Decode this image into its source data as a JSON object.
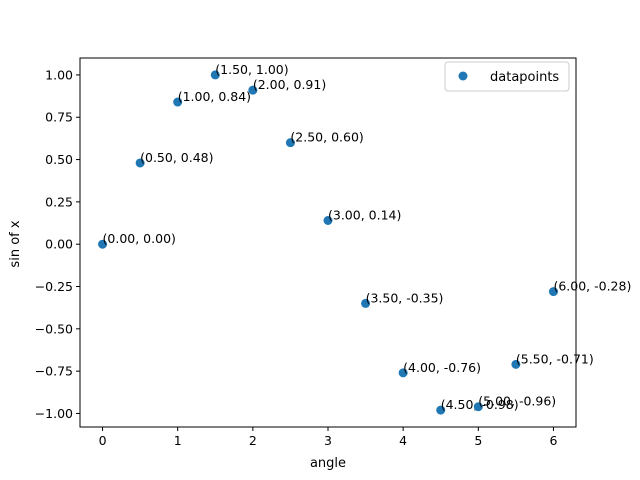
{
  "chart_data": {
    "type": "scatter",
    "title": "",
    "xlabel": "angle",
    "ylabel": "sin of x",
    "xlim": [
      -0.3,
      6.3
    ],
    "ylim": [
      -1.08,
      1.1
    ],
    "xticks": [
      0,
      1,
      2,
      3,
      4,
      5,
      6
    ],
    "xtick_labels": [
      "0",
      "1",
      "2",
      "3",
      "4",
      "5",
      "6"
    ],
    "yticks": [
      -1.0,
      -0.75,
      -0.5,
      -0.25,
      0.0,
      0.25,
      0.5,
      0.75,
      1.0
    ],
    "ytick_labels": [
      "−1.00",
      "−0.75",
      "−0.50",
      "−0.25",
      "0.00",
      "0.25",
      "0.50",
      "0.75",
      "1.00"
    ],
    "grid": false,
    "legend": {
      "position": "top-right",
      "entries": [
        "datapoints"
      ]
    },
    "marker_color": "#1f77b4",
    "series": [
      {
        "name": "datapoints",
        "x": [
          0.0,
          0.5,
          1.0,
          1.5,
          2.0,
          2.5,
          3.0,
          3.5,
          4.0,
          4.5,
          5.0,
          5.5,
          6.0
        ],
        "y": [
          0.0,
          0.48,
          0.84,
          1.0,
          0.91,
          0.6,
          0.14,
          -0.35,
          -0.76,
          -0.98,
          -0.96,
          -0.71,
          -0.28
        ]
      }
    ],
    "annotations": [
      "(0.00, 0.00)",
      "(0.50, 0.48)",
      "(1.00, 0.84)",
      "(1.50, 1.00)",
      "(2.00, 0.91)",
      "(2.50, 0.60)",
      "(3.00, 0.14)",
      "(3.50, -0.35)",
      "(4.00, -0.76)",
      "(4.50, -0.98)",
      "(5.00, -0.96)",
      "(5.50, -0.71)",
      "(6.00, -0.28)"
    ]
  }
}
